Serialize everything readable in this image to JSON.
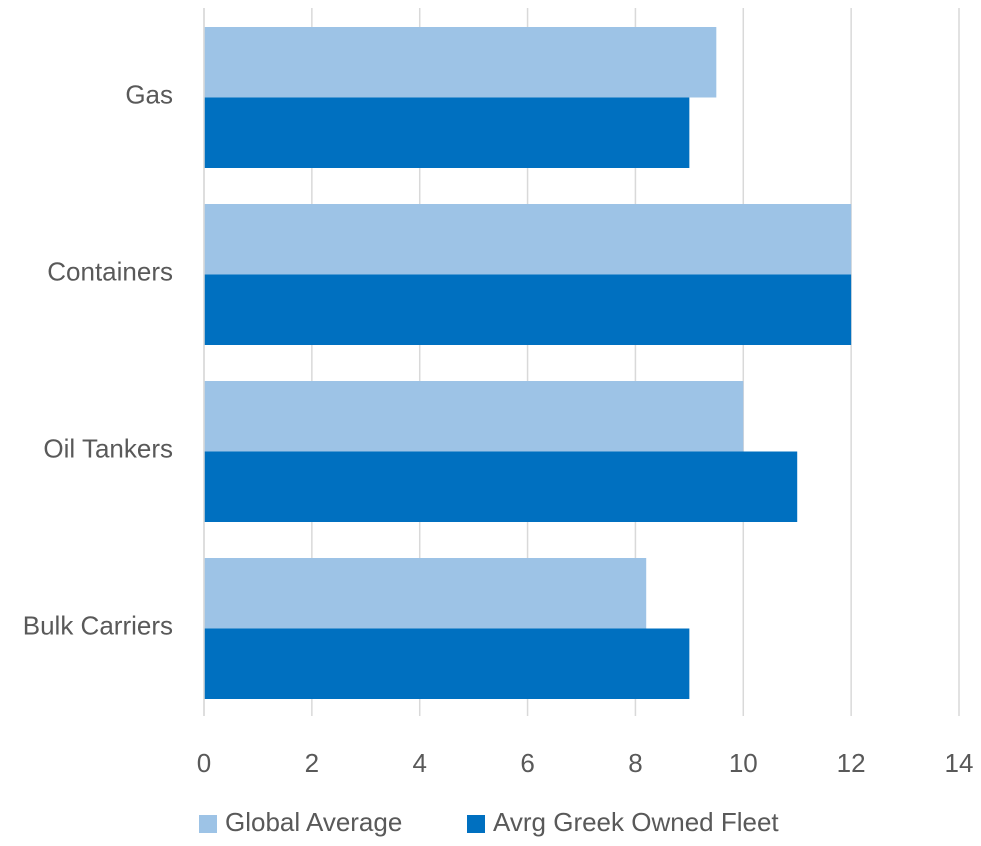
{
  "chart_data": {
    "type": "bar",
    "orientation": "horizontal",
    "title": "",
    "xlabel": "",
    "ylabel": "",
    "categories": [
      "Gas",
      "Containers",
      "Oil Tankers",
      "Bulk Carriers"
    ],
    "series": [
      {
        "name": "Global Average",
        "color": "#9dc3e6",
        "values": [
          9.5,
          12,
          10,
          8.2
        ]
      },
      {
        "name": "Avrg Greek Owned Fleet",
        "color": "#0070c0",
        "values": [
          9,
          12,
          11,
          9
        ]
      }
    ],
    "xlim": [
      0,
      14
    ],
    "xticks": [
      "0",
      "2",
      "4",
      "6",
      "8",
      "10",
      "12",
      "14"
    ],
    "grid": true,
    "legend_position": "bottom"
  }
}
